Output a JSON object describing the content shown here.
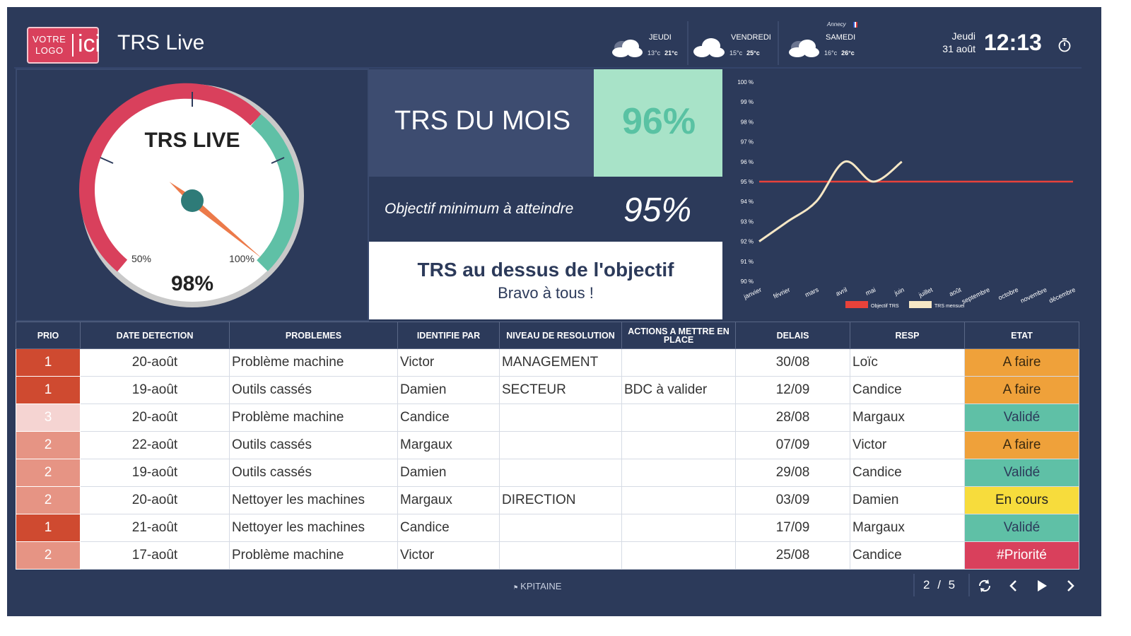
{
  "header": {
    "logo_line1": "VOTRE",
    "logo_line2": "LOGO",
    "logo_big": "ici",
    "title": "TRS Live",
    "weather": [
      {
        "day": "JEUDI",
        "min": "13°c",
        "max": "21°c",
        "icon": "cloud-icon"
      },
      {
        "day": "VENDREDI",
        "min": "15°c",
        "max": "25°c",
        "icon": "cloud-icon"
      },
      {
        "day": "SAMEDI",
        "min": "16°c",
        "max": "26°c",
        "icon": "cloud-icon"
      }
    ],
    "city": "Annecy",
    "date_day": "Jeudi",
    "date_date": "31 août",
    "time": "12:13",
    "timer_icon": "stopwatch-icon"
  },
  "gauge": {
    "title": "TRS LIVE",
    "value_label": "98%",
    "value": 98,
    "mark_low": "50%",
    "mark_high": "100%",
    "colors": {
      "red": "#d9405c",
      "green": "#5fc0a6",
      "needle": "#ec7a4a",
      "hub": "#2e7b78"
    }
  },
  "trs_mois": {
    "label": "TRS DU MOIS",
    "value": "96%"
  },
  "objectif": {
    "label": "Objectif minimum à atteindre",
    "value": "95%"
  },
  "message": {
    "line1": "TRS au dessus de l'objectif",
    "line2": "Bravo à tous !"
  },
  "chart_data": {
    "type": "line",
    "categories": [
      "janvier",
      "février",
      "mars",
      "avril",
      "mai",
      "juin",
      "juillet",
      "août",
      "septembre",
      "octobre",
      "novembre",
      "décembre"
    ],
    "y_ticks": [
      "90 %",
      "91 %",
      "92 %",
      "93 %",
      "94 %",
      "95 %",
      "96 %",
      "97 %",
      "98 %",
      "99 %",
      "100 %"
    ],
    "ylim": [
      90,
      100
    ],
    "series": [
      {
        "name": "Objectif TRS",
        "color": "#e8423a",
        "values": [
          95,
          95,
          95,
          95,
          95,
          95,
          95,
          95,
          95,
          95,
          95,
          95
        ]
      },
      {
        "name": "TRS mensuel",
        "color": "#f6e7c5",
        "values": [
          92,
          93,
          94,
          96,
          95,
          96,
          null,
          null,
          null,
          null,
          null,
          null
        ]
      }
    ],
    "legend_position": "bottom"
  },
  "table": {
    "headers": [
      "PRIO",
      "DATE DETECTION",
      "PROBLEMES",
      "IDENTIFIE PAR",
      "NIVEAU DE RESOLUTION",
      "ACTIONS A METTRE EN PLACE",
      "DELAIS",
      "RESP",
      "ETAT"
    ],
    "rows": [
      {
        "prio": "1",
        "date": "20-août",
        "probleme": "Problème machine",
        "identifie": "Victor",
        "niveau": "MANAGEMENT",
        "actions": "",
        "delais": "30/08",
        "resp": "Loïc",
        "etat": "A faire"
      },
      {
        "prio": "1",
        "date": "19-août",
        "probleme": "Outils cassés",
        "identifie": "Damien",
        "niveau": "SECTEUR",
        "actions": "BDC à valider",
        "delais": "12/09",
        "resp": "Candice",
        "etat": "A faire"
      },
      {
        "prio": "3",
        "date": "20-août",
        "probleme": "Problème machine",
        "identifie": "Candice",
        "niveau": "",
        "actions": "",
        "delais": "28/08",
        "resp": "Margaux",
        "etat": "Validé"
      },
      {
        "prio": "2",
        "date": "22-août",
        "probleme": "Outils cassés",
        "identifie": "Margaux",
        "niveau": "",
        "actions": "",
        "delais": "07/09",
        "resp": "Victor",
        "etat": "A faire"
      },
      {
        "prio": "2",
        "date": "19-août",
        "probleme": "Outils cassés",
        "identifie": "Damien",
        "niveau": "",
        "actions": "",
        "delais": "29/08",
        "resp": "Candice",
        "etat": "Validé"
      },
      {
        "prio": "2",
        "date": "20-août",
        "probleme": "Nettoyer les machines",
        "identifie": "Margaux",
        "niveau": "DIRECTION",
        "actions": "",
        "delais": "03/09",
        "resp": "Damien",
        "etat": "En cours"
      },
      {
        "prio": "1",
        "date": "21-août",
        "probleme": "Nettoyer les machines",
        "identifie": "Candice",
        "niveau": "",
        "actions": "",
        "delais": "17/09",
        "resp": "Margaux",
        "etat": "Validé"
      },
      {
        "prio": "2",
        "date": "17-août",
        "probleme": "Problème machine",
        "identifie": "Victor",
        "niveau": "",
        "actions": "",
        "delais": "25/08",
        "resp": "Candice",
        "etat": "#Priorité"
      }
    ]
  },
  "footer": {
    "brand": "KPITAINE",
    "page_current": "2",
    "page_sep": "/",
    "page_total": "5",
    "icons": [
      "refresh-icon",
      "prev-icon",
      "play-icon",
      "next-icon"
    ]
  }
}
